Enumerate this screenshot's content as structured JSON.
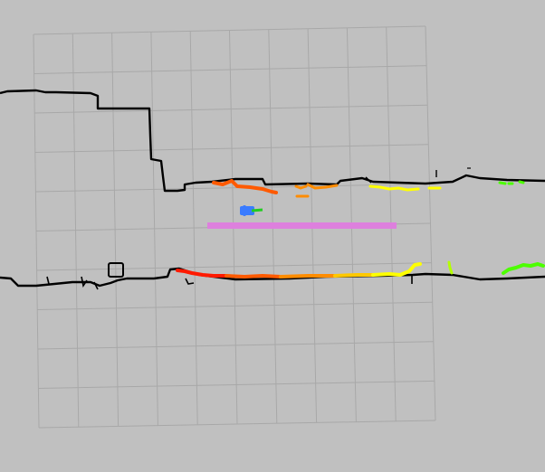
{
  "view": {
    "background_color": "#c0c0c0",
    "grid": {
      "visible": true,
      "color": "#a8a8a8",
      "rows": 10,
      "cols": 10
    }
  },
  "layers": {
    "occupancy_map": {
      "color": "#000000"
    },
    "laser_scan": {
      "colors": [
        "#ff1a00",
        "#ff5a00",
        "#ff8c00",
        "#ffc800",
        "#ffff00",
        "#b4ff00",
        "#4cff00"
      ]
    },
    "planned_path": {
      "color": "#dd80dd"
    },
    "robot": {
      "body_color": "#3a7bff",
      "heading_color": "#22cc22",
      "icon": "robot-marker-icon"
    }
  }
}
